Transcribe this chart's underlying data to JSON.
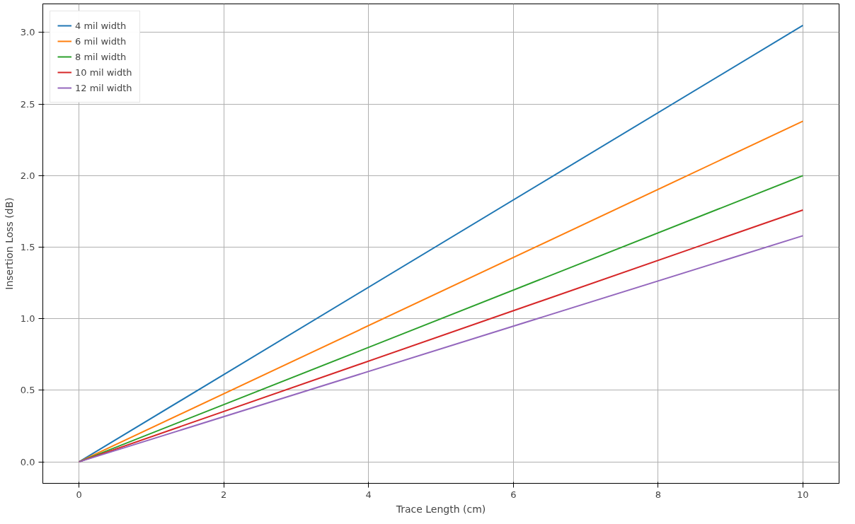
{
  "chart_data": {
    "type": "line",
    "xlabel": "Trace Length (cm)",
    "ylabel": "Insertion Loss (dB)",
    "x": [
      0,
      10
    ],
    "series": [
      {
        "name": "4 mil width",
        "color": "#1f77b4",
        "values": [
          0,
          3.05
        ]
      },
      {
        "name": "6 mil width",
        "color": "#ff7f0e",
        "values": [
          0,
          2.38
        ]
      },
      {
        "name": "8 mil width",
        "color": "#2ca02c",
        "values": [
          0,
          2.0
        ]
      },
      {
        "name": "10 mil width",
        "color": "#d62728",
        "values": [
          0,
          1.76
        ]
      },
      {
        "name": "12 mil width",
        "color": "#9467bd",
        "values": [
          0,
          1.58
        ]
      }
    ],
    "xlim": [
      -0.5,
      10.5
    ],
    "ylim": [
      -0.15,
      3.2
    ],
    "xticks": [
      0,
      2,
      4,
      6,
      8,
      10
    ],
    "yticks": [
      {
        "value": 0,
        "label": "0.0"
      },
      {
        "value": 0.5,
        "label": "0.5"
      },
      {
        "value": 1,
        "label": "1.0"
      },
      {
        "value": 1.5,
        "label": "1.5"
      },
      {
        "value": 2,
        "label": "2.0"
      },
      {
        "value": 2.5,
        "label": "2.5"
      },
      {
        "value": 3,
        "label": "3.0"
      }
    ],
    "grid": true,
    "legend": "top left",
    "line_style": "solid",
    "marker": "none"
  }
}
